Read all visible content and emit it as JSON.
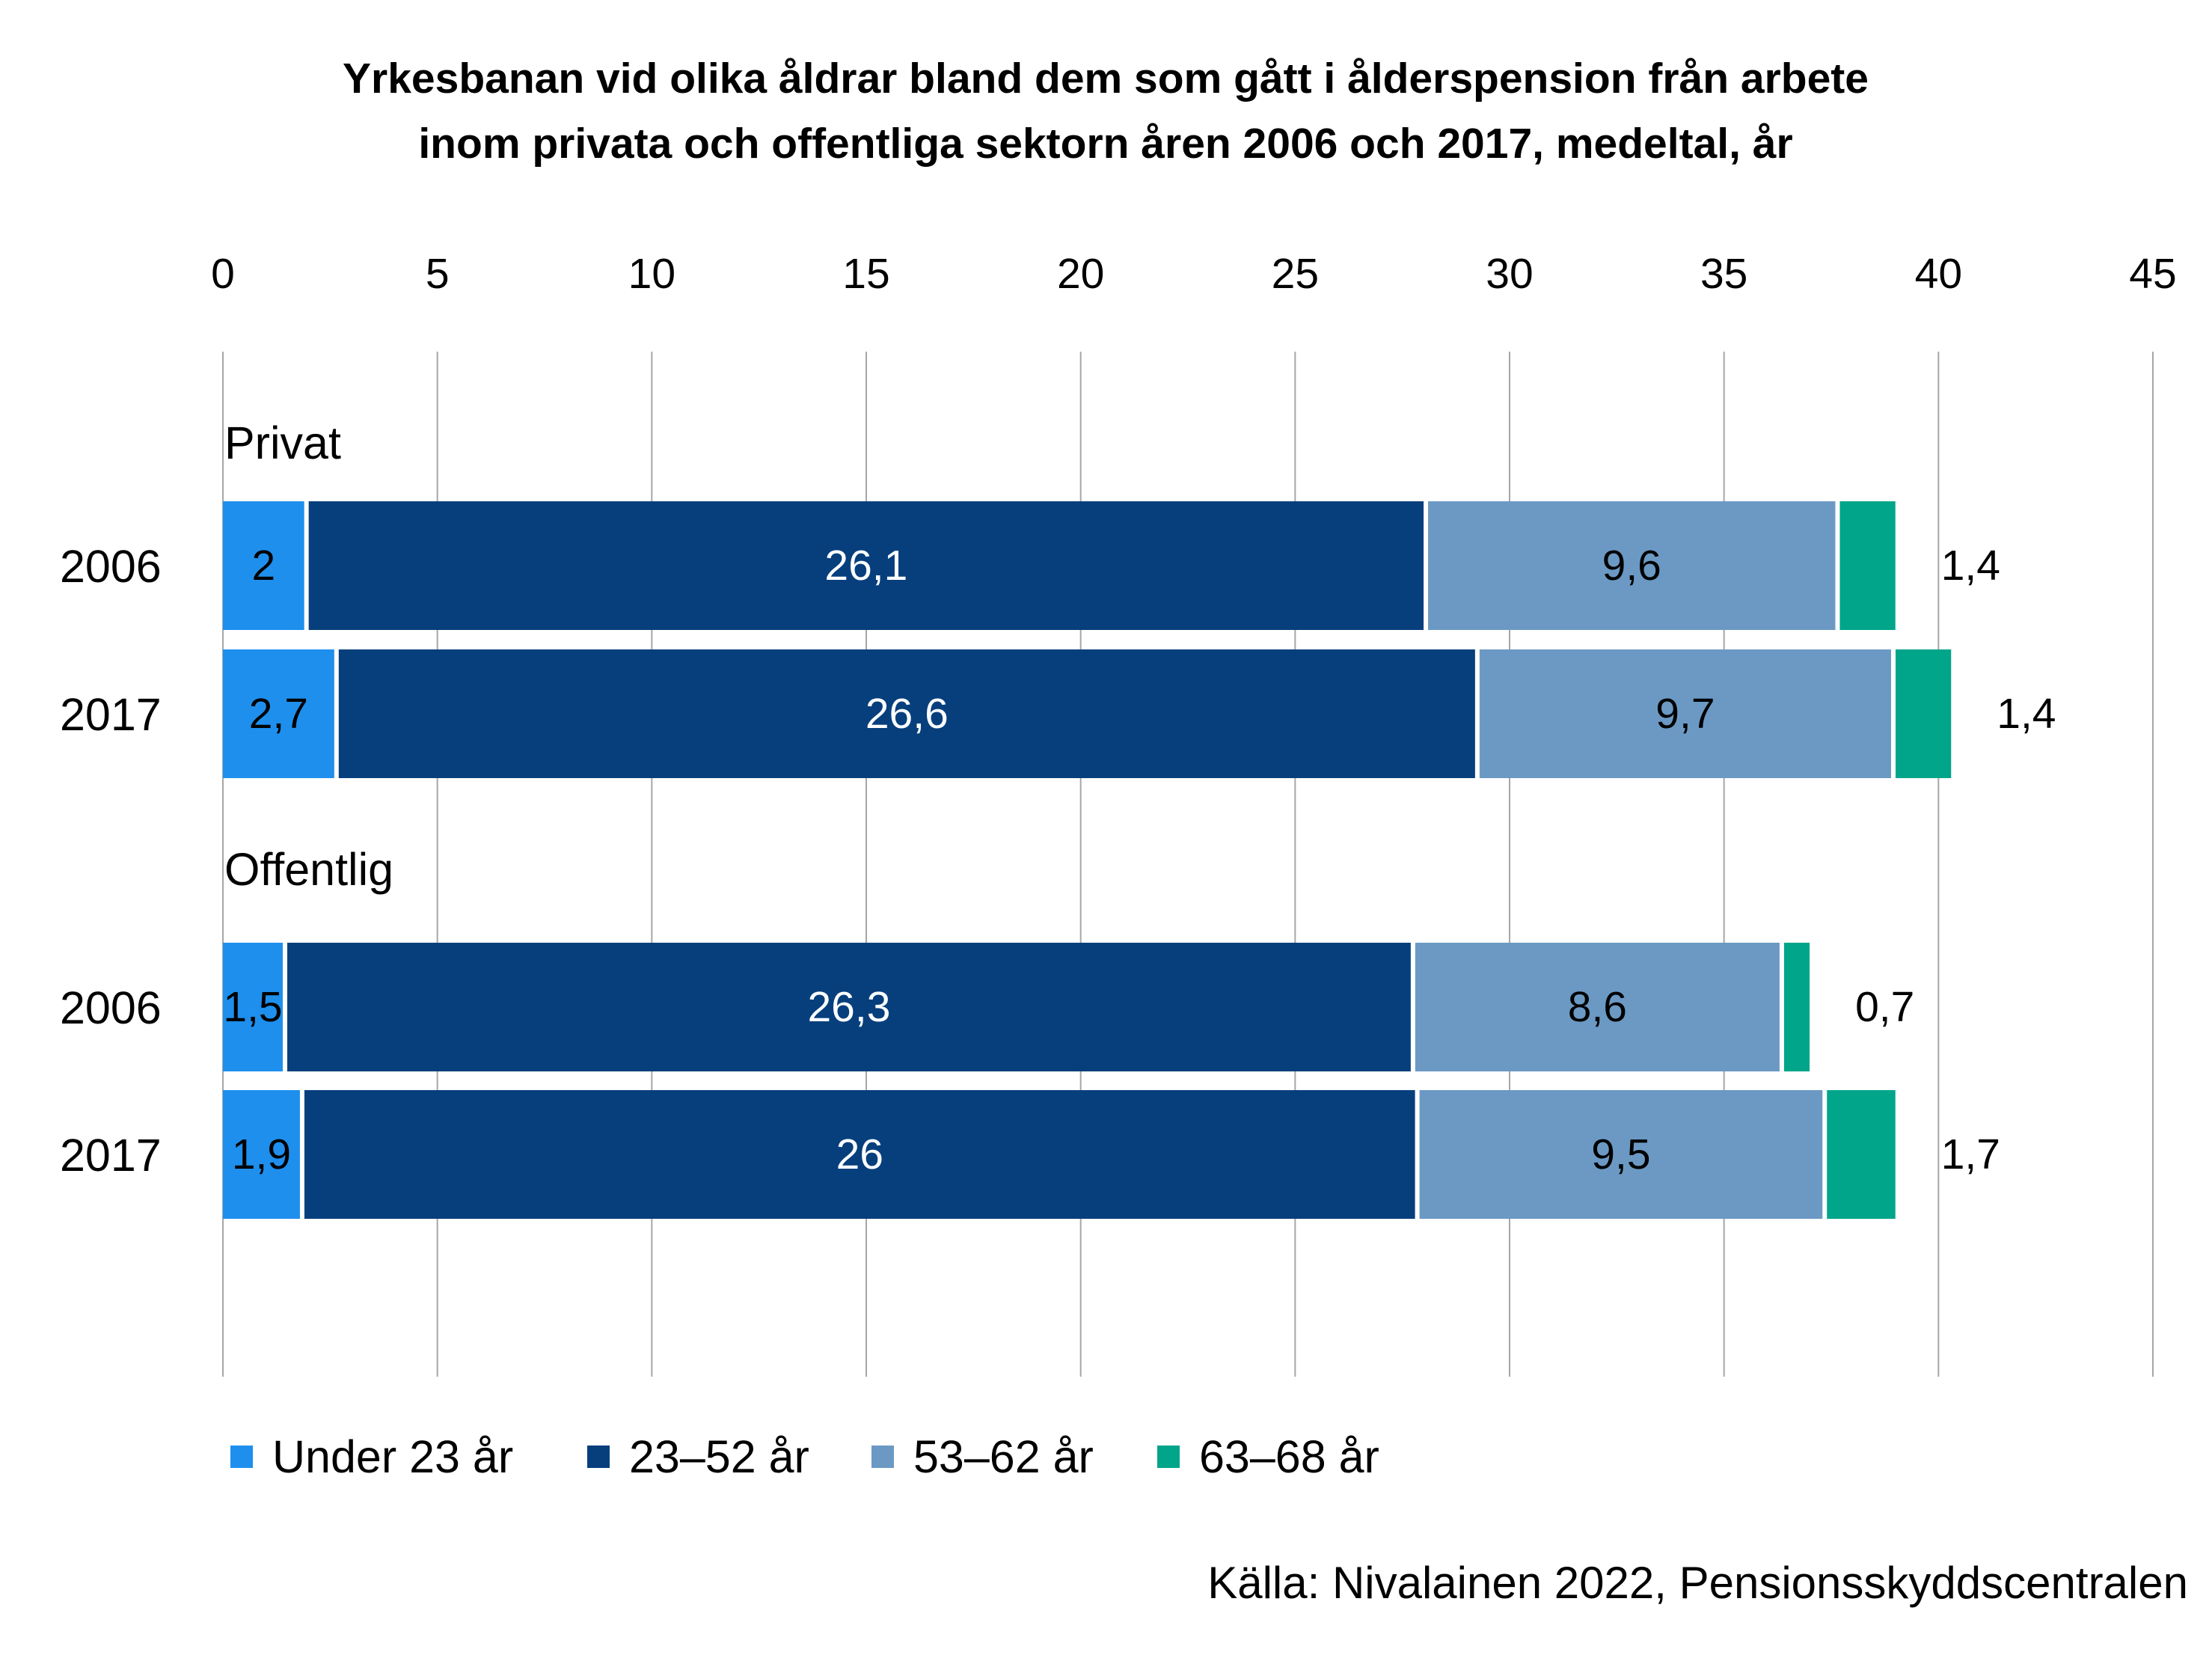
{
  "chart_data": {
    "type": "bar",
    "orientation": "horizontal",
    "stacked": true,
    "title_lines": [
      "Yrkesbanan vid olika åldrar bland dem som gått i ålderspension från arbete",
      "inom privata och offentliga sektorn åren 2006 och 2017, medeltal, år"
    ],
    "xlim": [
      0,
      45
    ],
    "xticks": [
      "0",
      "5",
      "10",
      "15",
      "20",
      "25",
      "30",
      "35",
      "40",
      "45"
    ],
    "grid": true,
    "legend_position": "bottom",
    "groups": [
      {
        "label": "Privat",
        "rows": [
          {
            "label": "2006",
            "values": [
              2,
              26.1,
              9.6,
              1.4
            ],
            "labels": [
              "2",
              "26,1",
              "9,6",
              "1,4"
            ]
          },
          {
            "label": "2017",
            "values": [
              2.7,
              26.6,
              9.7,
              1.4
            ],
            "labels": [
              "2,7",
              "26,6",
              "9,7",
              "1,4"
            ]
          }
        ]
      },
      {
        "label": "Offentlig",
        "rows": [
          {
            "label": "2006",
            "values": [
              1.5,
              26.3,
              8.6,
              0.7
            ],
            "labels": [
              "1,5",
              "26,3",
              "8,6",
              "0,7"
            ]
          },
          {
            "label": "2017",
            "values": [
              1.9,
              26,
              9.5,
              1.7
            ],
            "labels": [
              "1,9",
              "26",
              "9,5",
              "1,7"
            ]
          }
        ]
      }
    ],
    "series": [
      {
        "name": "Under 23 år",
        "color": "#1e8fed",
        "label_color": "#000000"
      },
      {
        "name": "23–52 år",
        "color": "#073f7d",
        "label_color": "#ffffff"
      },
      {
        "name": "53–62 år",
        "color": "#6b99c4",
        "label_color": "#000000"
      },
      {
        "name": "63–68 år",
        "color": "#00a58a",
        "label_color": "#000000"
      }
    ],
    "source": "Källa: Nivalainen 2022, Pensionsskyddscentralen"
  }
}
